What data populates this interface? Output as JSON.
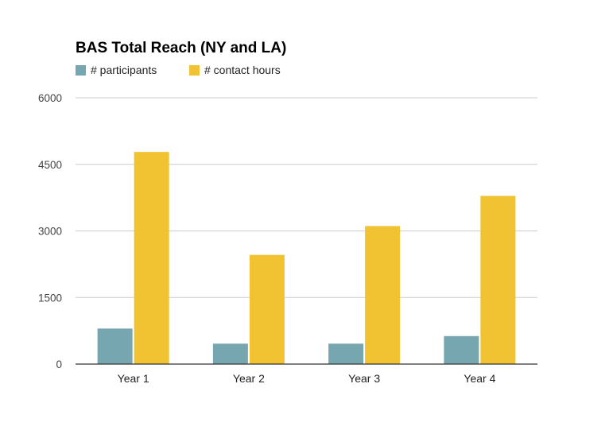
{
  "chart_data": {
    "type": "bar",
    "title": "BAS Total Reach (NY and LA)",
    "categories": [
      "Year 1",
      "Year 2",
      "Year 3",
      "Year 4"
    ],
    "series": [
      {
        "name": "# participants",
        "color": "#76a7b1",
        "values": [
          800,
          460,
          460,
          630
        ]
      },
      {
        "name": "# contact hours",
        "color": "#f1c232",
        "values": [
          4780,
          2460,
          3110,
          3790
        ]
      }
    ],
    "ylim": [
      0,
      6000
    ],
    "yticks": [
      0,
      1500,
      3000,
      4500,
      6000
    ],
    "xlabel": "",
    "ylabel": "",
    "grid": true,
    "legend": "top-left"
  }
}
